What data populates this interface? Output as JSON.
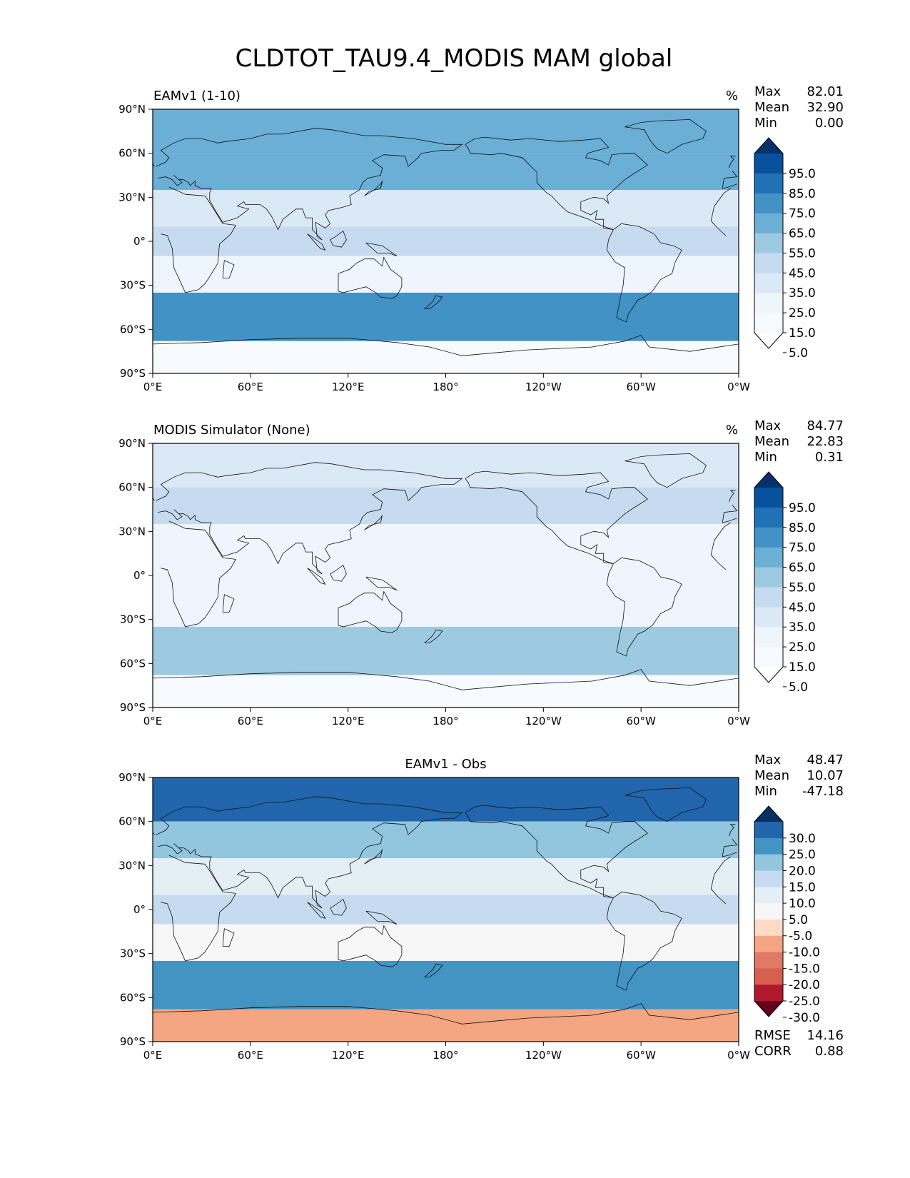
{
  "figure_title": "CLDTOT_TAU9.4_MODIS MAM global",
  "axes": {
    "lat_ticks": [
      "90°N",
      "60°N",
      "30°N",
      "0°",
      "30°S",
      "60°S",
      "90°S"
    ],
    "lon_ticks": [
      "0°E",
      "60°E",
      "120°E",
      "180°",
      "120°W",
      "60°W",
      "0°W"
    ]
  },
  "chart_data": [
    {
      "type": "heatmap",
      "map_projection": "PlateCarree",
      "title": "EAMv1 (1-10)",
      "units": "%",
      "stats": {
        "labels": [
          "Max",
          "Mean",
          "Min"
        ],
        "values": [
          "82.01",
          "32.90",
          "0.00"
        ]
      },
      "colormap": "Blues",
      "colorbar": {
        "levels": [
          "95.0",
          "85.0",
          "75.0",
          "65.0",
          "55.0",
          "45.0",
          "35.0",
          "25.0",
          "15.0",
          "5.0"
        ],
        "colors": [
          "#08306b",
          "#08519c",
          "#2171b5",
          "#4292c6",
          "#6baed6",
          "#9ecae1",
          "#c6dbef",
          "#dbe9f6",
          "#eef5fc",
          "#f7fbff",
          "#ffffff"
        ]
      },
      "description_zones": [
        {
          "lat": [
            60,
            90
          ],
          "value": 55
        },
        {
          "lat": [
            35,
            60
          ],
          "value": 58
        },
        {
          "lat": [
            10,
            35
          ],
          "value": 25
        },
        {
          "lat": [
            -10,
            10
          ],
          "value": 35
        },
        {
          "lat": [
            -35,
            -10
          ],
          "value": 22
        },
        {
          "lat": [
            -68,
            -35
          ],
          "value": 72
        },
        {
          "lat": [
            -90,
            -68
          ],
          "value": 8
        }
      ]
    },
    {
      "type": "heatmap",
      "map_projection": "PlateCarree",
      "title": "MODIS Simulator (None)",
      "units": "%",
      "stats": {
        "labels": [
          "Max",
          "Mean",
          "Min"
        ],
        "values": [
          "84.77",
          "22.83",
          "0.31"
        ]
      },
      "colormap": "Blues",
      "colorbar": {
        "levels": [
          "95.0",
          "85.0",
          "75.0",
          "65.0",
          "55.0",
          "45.0",
          "35.0",
          "25.0",
          "15.0",
          "5.0"
        ],
        "colors": [
          "#08306b",
          "#08519c",
          "#2171b5",
          "#4292c6",
          "#6baed6",
          "#9ecae1",
          "#c6dbef",
          "#dbe9f6",
          "#eef5fc",
          "#f7fbff",
          "#ffffff"
        ]
      },
      "description_zones": [
        {
          "lat": [
            60,
            90
          ],
          "value": 30
        },
        {
          "lat": [
            35,
            60
          ],
          "value": 35
        },
        {
          "lat": [
            10,
            35
          ],
          "value": 18
        },
        {
          "lat": [
            -10,
            10
          ],
          "value": 22
        },
        {
          "lat": [
            -35,
            -10
          ],
          "value": 15
        },
        {
          "lat": [
            -68,
            -35
          ],
          "value": 48
        },
        {
          "lat": [
            -90,
            -68
          ],
          "value": 8
        }
      ]
    },
    {
      "type": "heatmap",
      "map_projection": "PlateCarree",
      "title": "EAMv1 - Obs",
      "units": "",
      "stats": {
        "labels": [
          "Max",
          "Mean",
          "Min"
        ],
        "values": [
          "48.47",
          "10.07",
          "-47.18"
        ]
      },
      "metrics": {
        "labels": [
          "RMSE",
          "CORR"
        ],
        "values": [
          "14.16",
          "0.88"
        ]
      },
      "colormap": "RdBu",
      "colorbar": {
        "levels": [
          "30.0",
          "25.0",
          "20.0",
          "15.0",
          "10.0",
          "5.0",
          "-5.0",
          "-10.0",
          "-15.0",
          "-20.0",
          "-25.0",
          "-30.0"
        ],
        "colors": [
          "#053061",
          "#2166ac",
          "#4393c3",
          "#92c5de",
          "#c6dbef",
          "#e4eef5",
          "#f7f7f7",
          "#fddbc7",
          "#f4a582",
          "#e07a66",
          "#d6604d",
          "#b2182b",
          "#67001f"
        ]
      },
      "description_zones": [
        {
          "lat": [
            60,
            90
          ],
          "value": 28
        },
        {
          "lat": [
            35,
            60
          ],
          "value": 18
        },
        {
          "lat": [
            10,
            35
          ],
          "value": 6
        },
        {
          "lat": [
            -10,
            10
          ],
          "value": 10
        },
        {
          "lat": [
            -35,
            -10
          ],
          "value": 4
        },
        {
          "lat": [
            -68,
            -35
          ],
          "value": 22
        },
        {
          "lat": [
            -90,
            -68
          ],
          "value": -12
        }
      ]
    }
  ]
}
